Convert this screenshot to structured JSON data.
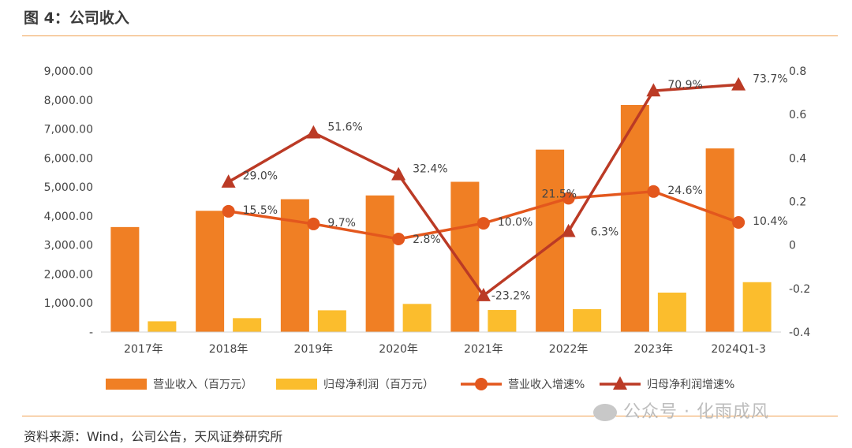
{
  "figure": {
    "title": "图 4：公司收入",
    "source": "资料来源：Wind，公司公告，天风证券研究所",
    "watermark": "公众号 · 化雨成风"
  },
  "colors": {
    "revenue_bar": "#f07f24",
    "profit_bar": "#fbbd2d",
    "revenue_growth": "#e3571d",
    "profit_growth": "#bb3a25",
    "rule": "#f0a050"
  },
  "chart_data": {
    "type": "bar",
    "combo": true,
    "categories": [
      "2017年",
      "2018年",
      "2019年",
      "2020年",
      "2021年",
      "2022年",
      "2023年",
      "2024Q1-3"
    ],
    "y_left": {
      "ylim": [
        0,
        9000
      ],
      "ticks": [
        "-",
        "1,000.00",
        "2,000.00",
        "3,000.00",
        "4,000.00",
        "5,000.00",
        "6,000.00",
        "7,000.00",
        "8,000.00",
        "9,000.00"
      ]
    },
    "y_right": {
      "ylim": [
        -0.4,
        0.8
      ],
      "ticks": [
        "-0.4",
        "-0.2",
        "0",
        "0.2",
        "0.4",
        "0.6",
        "0.8"
      ]
    },
    "bar_series": [
      {
        "name": "营业收入（百万元）",
        "values": [
          3620,
          4180,
          4580,
          4710,
          5180,
          6290,
          7830,
          6330
        ]
      },
      {
        "name": "归母净利润（百万元）",
        "values": [
          370,
          480,
          750,
          970,
          760,
          790,
          1360,
          1720
        ]
      }
    ],
    "line_series": [
      {
        "name": "营业收入增速%",
        "marker": "circle",
        "values": [
          null,
          0.155,
          0.097,
          0.028,
          0.1,
          0.215,
          0.246,
          0.104
        ],
        "labels": [
          null,
          "15.5%",
          "9.7%",
          "2.8%",
          "10.0%",
          "21.5%",
          "24.6%",
          "10.4%"
        ]
      },
      {
        "name": "归母净利润增速%",
        "marker": "triangle",
        "values": [
          null,
          0.29,
          0.516,
          0.324,
          -0.232,
          0.063,
          0.709,
          0.737
        ],
        "labels": [
          null,
          "29.0%",
          "51.6%",
          "32.4%",
          "-23.2%",
          "6.3%",
          "70.9%",
          "73.7%"
        ]
      }
    ],
    "legend_position": "bottom",
    "grid": false
  }
}
